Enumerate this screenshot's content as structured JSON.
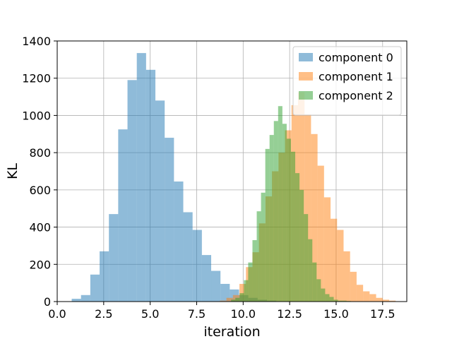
{
  "chart_data": {
    "type": "histogram",
    "title": "",
    "xlabel": "iteration",
    "ylabel": "KL",
    "xlim": [
      0.0,
      18.8
    ],
    "ylim": [
      0,
      1400
    ],
    "xticks": [
      0.0,
      2.5,
      5.0,
      7.5,
      10.0,
      12.5,
      15.0,
      17.5
    ],
    "xtick_labels": [
      "0.0",
      "2.5",
      "5.0",
      "7.5",
      "10.0",
      "12.5",
      "15.0",
      "17.5"
    ],
    "yticks": [
      0,
      200,
      400,
      600,
      800,
      1000,
      1200,
      1400
    ],
    "ytick_labels": [
      "0",
      "200",
      "400",
      "600",
      "800",
      "1000",
      "1200",
      "1400"
    ],
    "grid": true,
    "legend_position": "top-right",
    "series": [
      {
        "name": "component 0",
        "color": "#1f77b4",
        "opacity": 0.5,
        "bin_start": 0.78,
        "bin_width": 0.5,
        "counts": [
          15,
          35,
          145,
          270,
          470,
          925,
          1190,
          1335,
          1245,
          1080,
          880,
          645,
          480,
          385,
          250,
          165,
          95,
          65,
          35,
          20,
          10,
          5
        ]
      },
      {
        "name": "component 1",
        "color": "#ff7f0e",
        "opacity": 0.5,
        "bin_start": 8.75,
        "bin_width": 0.35,
        "counts": [
          5,
          20,
          35,
          95,
          185,
          265,
          420,
          565,
          700,
          800,
          920,
          1055,
          1125,
          1005,
          900,
          730,
          560,
          445,
          385,
          270,
          160,
          90,
          55,
          40,
          20,
          10,
          5
        ]
      },
      {
        "name": "component 2",
        "color": "#2ca02c",
        "opacity": 0.5,
        "bin_start": 9.35,
        "bin_width": 0.23,
        "counts": [
          10,
          20,
          45,
          115,
          210,
          330,
          485,
          585,
          820,
          895,
          970,
          1050,
          955,
          875,
          805,
          690,
          600,
          470,
          335,
          210,
          120,
          70,
          40,
          25,
          10,
          5,
          5,
          3
        ]
      }
    ]
  }
}
